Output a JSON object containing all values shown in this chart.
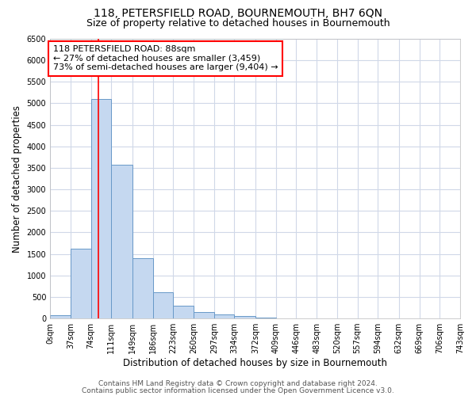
{
  "title": "118, PETERSFIELD ROAD, BOURNEMOUTH, BH7 6QN",
  "subtitle": "Size of property relative to detached houses in Bournemouth",
  "xlabel": "Distribution of detached houses by size in Bournemouth",
  "ylabel": "Number of detached properties",
  "bin_edges": [
    0,
    37,
    74,
    111,
    149,
    186,
    223,
    260,
    297,
    334,
    372,
    409,
    446,
    483,
    520,
    557,
    594,
    632,
    669,
    706,
    743
  ],
  "counts": [
    75,
    1625,
    5100,
    3575,
    1400,
    600,
    300,
    150,
    100,
    50,
    25,
    10,
    5,
    2,
    1,
    1,
    0,
    0,
    0,
    0
  ],
  "bar_color": "#c5d8f0",
  "bar_edge_color": "#6899c8",
  "property_line_x": 88,
  "property_line_color": "red",
  "annotation_text": "118 PETERSFIELD ROAD: 88sqm\n← 27% of detached houses are smaller (3,459)\n73% of semi-detached houses are larger (9,404) →",
  "annotation_box_color": "white",
  "annotation_box_edge_color": "red",
  "ylim": [
    0,
    6500
  ],
  "xlim": [
    0,
    743
  ],
  "tick_labels": [
    "0sqm",
    "37sqm",
    "74sqm",
    "111sqm",
    "149sqm",
    "186sqm",
    "223sqm",
    "260sqm",
    "297sqm",
    "334sqm",
    "372sqm",
    "409sqm",
    "446sqm",
    "483sqm",
    "520sqm",
    "557sqm",
    "594sqm",
    "632sqm",
    "669sqm",
    "706sqm",
    "743sqm"
  ],
  "footer_line1": "Contains HM Land Registry data © Crown copyright and database right 2024.",
  "footer_line2": "Contains public sector information licensed under the Open Government Licence v3.0.",
  "background_color": "#ffffff",
  "plot_bg_color": "#ffffff",
  "grid_color": "#d0d8e8",
  "title_fontsize": 10,
  "subtitle_fontsize": 9,
  "label_fontsize": 8.5,
  "tick_fontsize": 7,
  "footer_fontsize": 6.5,
  "annotation_fontsize": 8
}
